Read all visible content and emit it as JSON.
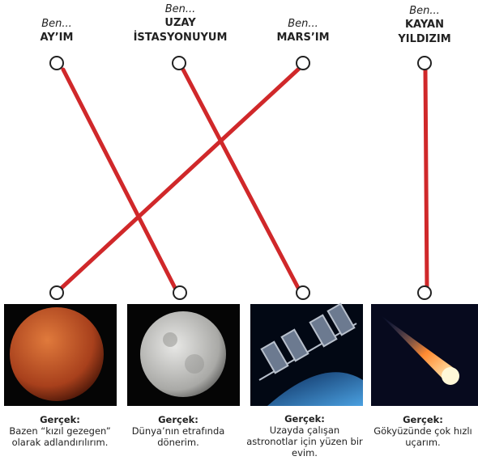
{
  "top": [
    {
      "prefix": "Ben...",
      "label": "AY’IM"
    },
    {
      "prefix": "Ben...",
      "label": "UZAY İSTASYONUYUM"
    },
    {
      "prefix": "Ben...",
      "label": "MARS’IM"
    },
    {
      "prefix": "Ben...",
      "label": "KAYAN YILDIZIM"
    }
  ],
  "bottom": [
    {
      "heading": "Gerçek:",
      "text": "Bazen “kızıl gezegen” olarak adlandırılırım."
    },
    {
      "heading": "Gerçek:",
      "text": "Dünya’nın etrafında dönerim."
    },
    {
      "heading": "Gerçek:",
      "text": "Uzayda çalışan astronotlar için yüzen bir evim."
    },
    {
      "heading": "Gerçek:",
      "text": "Gökyüzünde çok hızlı uçarım."
    }
  ]
}
